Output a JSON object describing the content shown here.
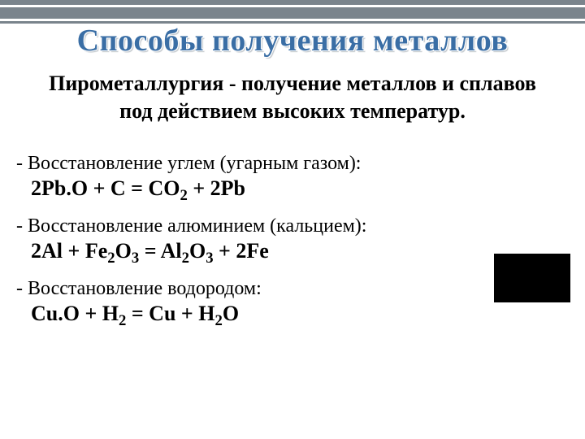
{
  "colors": {
    "bar": "#7a848c",
    "title": "#3a6ea5",
    "title_shadow": "#bcc2c7",
    "text": "#000000",
    "background": "#ffffff",
    "box": "#000000"
  },
  "fonts": {
    "title_size_pt": 29,
    "subtitle_size_pt": 20,
    "label_size_pt": 18,
    "formula_size_pt": 20,
    "title_weight": "bold",
    "subtitle_weight": "bold",
    "formula_weight": "bold"
  },
  "title": "Способы получения металлов",
  "subtitle_line1": "Пирометаллургия - получение металлов и сплавов",
  "subtitle_line2": "под действием высоких температур.",
  "items": [
    {
      "label": "- Восстановление углем (угарным газом):",
      "formula_html": "2Pb.O + C = CO<sub>2</sub> + 2Pb"
    },
    {
      "label": "- Восстановление алюминием (кальцием):",
      "formula_html": "2Al + Fe<sub>2</sub>O<sub>3</sub> = Al<sub>2</sub>O<sub>3</sub> + 2Fe"
    },
    {
      "label": "- Восстановление водородом:",
      "formula_html": "Cu.O + H<sub>2</sub> = Cu + H<sub>2</sub>O"
    }
  ]
}
